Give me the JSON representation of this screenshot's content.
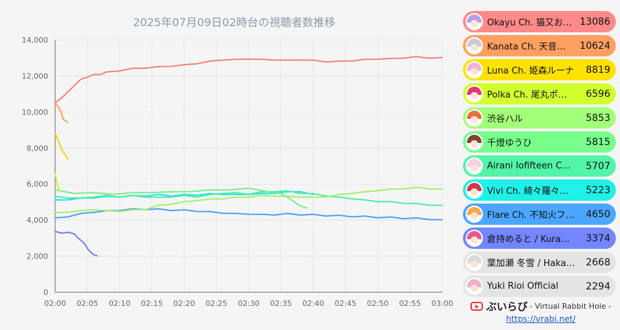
{
  "chart_data": {
    "type": "line",
    "title": "2025年07月09日02時台の視聴者数推移",
    "x_ticks": [
      "02:00",
      "02:05",
      "02:10",
      "02:15",
      "02:20",
      "02:25",
      "02:30",
      "02:35",
      "02:40",
      "02:45",
      "02:50",
      "02:55",
      "03:00"
    ],
    "y_ticks": [
      "0",
      "2,000",
      "4,000",
      "6,000",
      "8,000",
      "10,000",
      "12,000",
      "14,000"
    ],
    "xlim": [
      0,
      60
    ],
    "ylim": [
      0,
      14000
    ],
    "x_unit": "minutes after 02:00",
    "grid": true,
    "legend_position": "right",
    "series": [
      {
        "name": "Okayu Ch. 猫又お…",
        "display_value": "13086",
        "color": "#f57f7f",
        "x": [
          0,
          1,
          2,
          3,
          4,
          5,
          6,
          7,
          8,
          10,
          12,
          14,
          16,
          18,
          20,
          22,
          24,
          26,
          28,
          30,
          32,
          34,
          36,
          38,
          40,
          42,
          44,
          46,
          48,
          50,
          52,
          54,
          56,
          58,
          60
        ],
        "y": [
          10500,
          10800,
          11100,
          11500,
          11800,
          11950,
          12050,
          12100,
          12200,
          12300,
          12400,
          12450,
          12500,
          12550,
          12600,
          12700,
          12800,
          12900,
          12900,
          12950,
          12900,
          12900,
          12850,
          12900,
          12850,
          12800,
          12800,
          12850,
          12900,
          12950,
          12950,
          13000,
          13050,
          13000,
          13000
        ]
      },
      {
        "name": "Kanata Ch. 天音…",
        "display_value": "10624",
        "color": "#f9a05a",
        "x": [
          0,
          0.5,
          1,
          1.3,
          1.6,
          1.9
        ],
        "y": [
          10500,
          10300,
          9900,
          9600,
          9500,
          9450
        ]
      },
      {
        "name": "Luna Ch. 姫森ルーナ",
        "display_value": "8819",
        "color": "#f4d40d",
        "x": [
          0,
          0.4,
          0.8,
          1.2,
          1.6,
          2.0
        ],
        "y": [
          8800,
          8500,
          8100,
          7800,
          7600,
          7400
        ]
      },
      {
        "name": "Polka Ch. 尾丸ポルカ",
        "display_value": "6596",
        "color": "#c7ef3a",
        "x": [
          0,
          0.2,
          0.4,
          0.6,
          0.8
        ],
        "y": [
          6550,
          6200,
          5900,
          5700,
          5600
        ]
      },
      {
        "name": "渋谷ハル",
        "display_value": "5853",
        "color": "#a0f070",
        "x": [
          0,
          2,
          4,
          6,
          8,
          10,
          12,
          14,
          16,
          18,
          20,
          22,
          24,
          26,
          28,
          30,
          32,
          34,
          36,
          38,
          40,
          42,
          44,
          46,
          48,
          50,
          52,
          54,
          56,
          58,
          60
        ],
        "y": [
          4400,
          4450,
          4500,
          4600,
          4500,
          4500,
          4550,
          4600,
          4800,
          4900,
          5000,
          5100,
          5150,
          5200,
          5250,
          5300,
          5350,
          5350,
          5300,
          5300,
          5250,
          5300,
          5400,
          5500,
          5550,
          5650,
          5700,
          5750,
          5800,
          5750,
          5700
        ]
      },
      {
        "name": "千燈ゆうひ",
        "display_value": "5815",
        "color": "#74ef88",
        "x": [
          0,
          3,
          6,
          9,
          12,
          15,
          18,
          21,
          24,
          27,
          30,
          33,
          35,
          36,
          37,
          38,
          39
        ],
        "y": [
          5650,
          5500,
          5500,
          5450,
          5500,
          5550,
          5550,
          5600,
          5650,
          5700,
          5750,
          5600,
          5450,
          5300,
          5000,
          4800,
          4650
        ]
      },
      {
        "name": "Airani Iofifteen Ch…",
        "display_value": "5707",
        "color": "#4feaa5",
        "x": [
          0,
          2,
          4,
          6,
          8,
          10,
          12,
          14,
          16,
          18,
          20,
          22,
          24,
          26,
          28,
          30,
          32,
          34,
          36,
          38,
          40,
          42,
          44,
          46,
          48,
          50,
          52,
          54,
          56,
          58,
          60
        ],
        "y": [
          5300,
          5250,
          5200,
          5300,
          5350,
          5300,
          5350,
          5300,
          5250,
          5300,
          5350,
          5300,
          5400,
          5500,
          5500,
          5450,
          5550,
          5600,
          5600,
          5500,
          5450,
          5350,
          5250,
          5200,
          5100,
          5050,
          5000,
          4950,
          4900,
          4850,
          4800
        ]
      },
      {
        "name": "Vivi Ch. 綺々羅々ヴ…",
        "display_value": "5223",
        "color": "#1de3e3",
        "x": [
          0,
          2,
          4,
          6,
          8,
          10,
          12,
          14,
          16,
          18,
          20,
          22,
          24,
          26,
          28,
          30,
          32,
          34,
          36,
          38,
          40
        ],
        "y": [
          5100,
          5150,
          5200,
          5250,
          5300,
          5300,
          5350,
          5350,
          5400,
          5350,
          5400,
          5400,
          5450,
          5450,
          5400,
          5450,
          5450,
          5500,
          5550,
          5600,
          5400
        ]
      },
      {
        "name": "Flare Ch. 不知火フ…",
        "display_value": "4650",
        "color": "#4f9ff7",
        "x": [
          0,
          2,
          4,
          6,
          8,
          10,
          12,
          14,
          16,
          18,
          20,
          22,
          24,
          26,
          28,
          30,
          32,
          34,
          36,
          38,
          40,
          42,
          44,
          46,
          48,
          50,
          52,
          54,
          56,
          58,
          60
        ],
        "y": [
          4100,
          4200,
          4350,
          4450,
          4500,
          4550,
          4600,
          4600,
          4600,
          4550,
          4550,
          4500,
          4450,
          4400,
          4350,
          4350,
          4300,
          4300,
          4350,
          4300,
          4300,
          4250,
          4250,
          4200,
          4200,
          4150,
          4150,
          4100,
          4100,
          4050,
          4000
        ]
      },
      {
        "name": "倉持めると / Kura…",
        "display_value": "3374",
        "color": "#6e7ff2",
        "x": [
          0,
          1,
          2,
          3,
          3.5,
          4,
          4.5,
          5,
          5.5,
          6,
          6.5
        ],
        "y": [
          3350,
          3300,
          3300,
          3250,
          3000,
          2900,
          2700,
          2450,
          2200,
          2100,
          2000
        ]
      },
      {
        "name": "葉加瀬 冬雪 / Haka…",
        "display_value": "2668",
        "color": "#e3e3e3",
        "x": [],
        "y": []
      },
      {
        "name": "Yuki Rioi Official",
        "display_value": "2294",
        "color": "#e3e3e3",
        "x": [],
        "y": []
      }
    ]
  },
  "legend_colors": [
    "#ff8a8a",
    "#ffa060",
    "#ffe200",
    "#d2ff2e",
    "#a2ff7a",
    "#78ff8c",
    "#52f5a8",
    "#1ff0e8",
    "#4aa6ff",
    "#7386ff",
    "#e4e4e4",
    "#e4e4e4"
  ],
  "avatar_hair_colors": [
    "#b7a0e6",
    "#c7c7d6",
    "#f3b3d7",
    "#e23b6b",
    "#e86e3a",
    "#7a4732",
    "#f3cfe0",
    "#c73b4a",
    "#f7a84a",
    "#e55a8a",
    "#d9d9df",
    "#f0b0c8"
  ],
  "footer": {
    "brand_name": "ぶいらび",
    "brand_tagline": "- Virtual Rabbit Hole -",
    "url": "https://vrabi.net/",
    "icon": "play-button-icon"
  }
}
